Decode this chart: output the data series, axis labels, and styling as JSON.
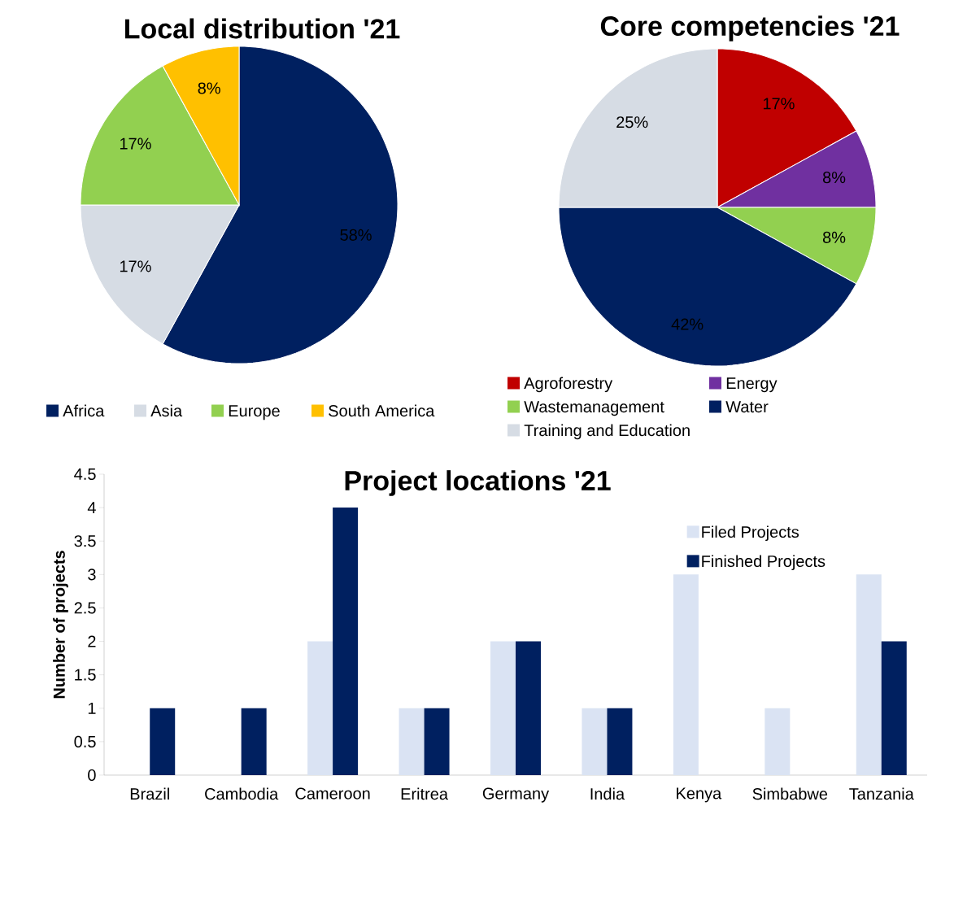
{
  "chart_data": [
    {
      "type": "pie",
      "title": "Local distribution '21",
      "categories": [
        "Africa",
        "Asia",
        "Europe",
        "South America"
      ],
      "values": [
        58,
        17,
        17,
        8
      ],
      "colors": [
        "#002060",
        "#d6dce4",
        "#92d050",
        "#ffc000"
      ],
      "value_labels": [
        "58%",
        "17%",
        "17%",
        "8%"
      ],
      "legend": "bottom"
    },
    {
      "type": "pie",
      "title": "Core competencies '21",
      "categories": [
        "Agroforestry",
        "Energy",
        "Wastemanagement",
        "Water",
        "Training and Education"
      ],
      "values": [
        17,
        8,
        8,
        42,
        25
      ],
      "colors": [
        "#c00000",
        "#7030a0",
        "#92d050",
        "#002060",
        "#d6dce4"
      ],
      "value_labels": [
        "17%",
        "8%",
        "8%",
        "42%",
        "25%"
      ],
      "legend": "bottom"
    },
    {
      "type": "bar",
      "title": "Project locations '21",
      "ylabel": "Number of projects",
      "categories": [
        "Brazil",
        "Cambodia",
        "Cameroon",
        "Eritrea",
        "Germany",
        "India",
        "Kenya",
        "Simbabwe",
        "Tanzania"
      ],
      "series": [
        {
          "name": "Filed Projects",
          "color": "#dae3f3",
          "values": [
            null,
            null,
            2,
            1,
            2,
            1,
            3,
            1,
            3
          ]
        },
        {
          "name": "Finished Projects",
          "color": "#002060",
          "values": [
            1,
            1,
            4,
            1,
            2,
            1,
            null,
            null,
            2
          ]
        }
      ],
      "ylim": [
        0,
        4.5
      ],
      "yticks": [
        0,
        0.5,
        1,
        1.5,
        2,
        2.5,
        3,
        3.5,
        4,
        4.5
      ],
      "legend": "top right"
    }
  ]
}
